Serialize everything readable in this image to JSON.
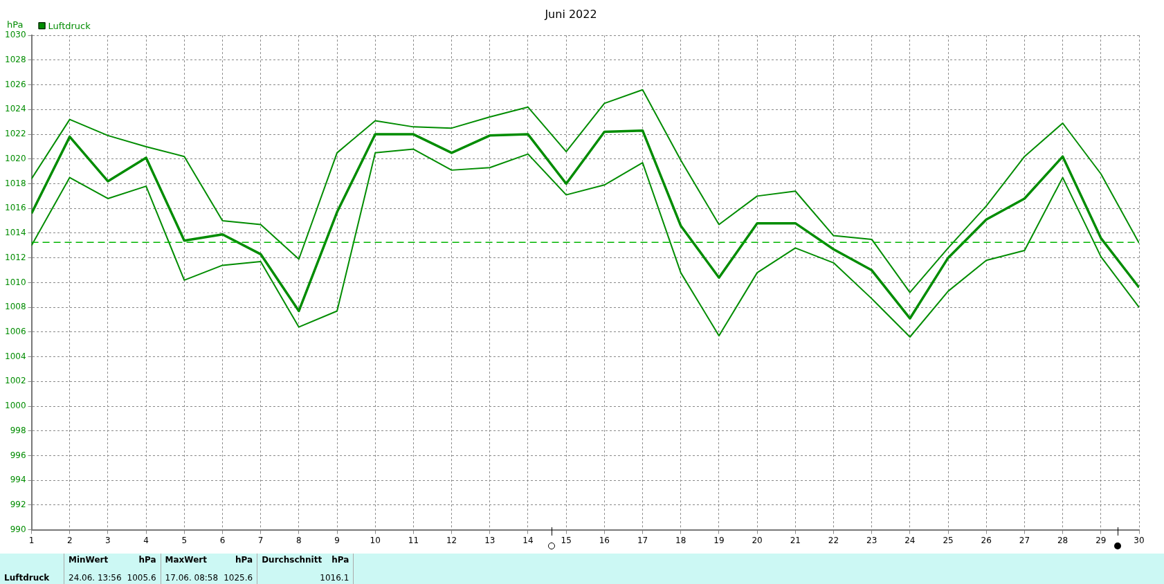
{
  "chart_data": {
    "type": "line",
    "title": "Juni 2022",
    "ylabel": "hPa",
    "x": [
      1,
      2,
      3,
      4,
      5,
      6,
      7,
      8,
      9,
      10,
      11,
      12,
      13,
      14,
      15,
      16,
      17,
      18,
      19,
      20,
      21,
      22,
      23,
      24,
      25,
      26,
      27,
      28,
      29,
      30
    ],
    "series": [
      {
        "color": "#008c00",
        "values": [
          1018.4,
          1023.2,
          1021.9,
          1021.0,
          1020.2,
          1015.0,
          1014.7,
          1011.9,
          1020.5,
          1023.1,
          1022.6,
          1022.5,
          1023.4,
          1024.2,
          1020.6,
          1024.5,
          1025.6,
          1019.9,
          1014.7,
          1017.0,
          1017.4,
          1013.8,
          1013.5,
          1009.2,
          1012.8,
          1016.2,
          1020.2,
          1022.9,
          1018.8,
          1013.2
        ]
      },
      {
        "name": "Luftdruck",
        "color": "#008c00",
        "values": [
          1015.6,
          1021.8,
          1018.2,
          1020.1,
          1013.4,
          1013.9,
          1012.3,
          1007.7,
          1015.7,
          1022.0,
          1022.0,
          1020.5,
          1021.9,
          1022.0,
          1018.0,
          1022.2,
          1022.3,
          1014.6,
          1010.4,
          1014.8,
          1014.8,
          1012.7,
          1011.0,
          1007.1,
          1012.0,
          1015.1,
          1016.8,
          1020.2,
          1013.6,
          1009.6
        ]
      },
      {
        "color": "#008c00",
        "values": [
          1013.0,
          1018.5,
          1016.8,
          1017.8,
          1010.2,
          1011.4,
          1011.7,
          1006.4,
          1007.7,
          1020.5,
          1020.8,
          1019.1,
          1019.3,
          1020.4,
          1017.1,
          1017.9,
          1019.7,
          1010.8,
          1005.7,
          1010.8,
          1012.8,
          1011.6,
          1008.7,
          1005.6,
          1009.3,
          1011.8,
          1012.6,
          1018.5,
          1012.1,
          1008.0
        ]
      }
    ],
    "xlim": [
      1,
      30
    ],
    "xticks": [
      1,
      2,
      3,
      4,
      5,
      6,
      7,
      8,
      9,
      10,
      11,
      12,
      13,
      14,
      15,
      16,
      17,
      18,
      19,
      20,
      21,
      22,
      23,
      24,
      25,
      26,
      27,
      28,
      29,
      30
    ],
    "ylim": [
      990,
      1030
    ],
    "yticks": [
      990,
      992,
      994,
      996,
      998,
      1000,
      1002,
      1004,
      1006,
      1008,
      1010,
      1012,
      1014,
      1016,
      1018,
      1020,
      1022,
      1024,
      1026,
      1028,
      1030
    ],
    "ref_lines": [
      {
        "axis": "y",
        "value": 1013.25,
        "color": "#00b400",
        "line_style": "dashed"
      }
    ],
    "grid": true,
    "legend": "top left",
    "marker": "none",
    "line_style": "solid",
    "annotations": [
      "MinWert",
      "hPa",
      "24.06. 13:56",
      "1005.6",
      "MaxWert",
      "hPa",
      "17.06. 08:58",
      "1025.6",
      "Durchschnitt",
      "hPa",
      "1016.1"
    ]
  }
}
